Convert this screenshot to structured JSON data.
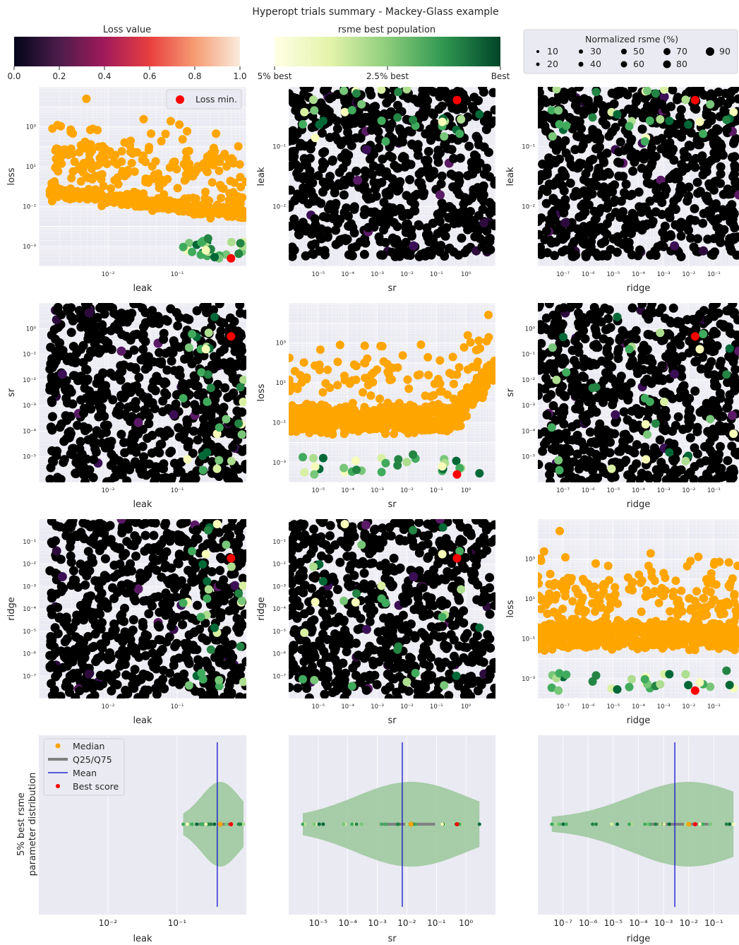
{
  "title": "Hyperopt trials summary - Mackey-Glass example",
  "colorbars": {
    "loss": {
      "label": "Loss value",
      "ticks": [
        "0.0",
        "0.2",
        "0.4",
        "0.6",
        "0.8",
        "1.0"
      ]
    },
    "rsme": {
      "label": "rsme best population",
      "ticks": [
        "5% best",
        "2.5% best",
        "Best"
      ]
    }
  },
  "size_legend": {
    "title": "Normalized rsme (%)",
    "entries": [
      "10",
      "30",
      "50",
      "70",
      "90",
      "20",
      "40",
      "60",
      "80"
    ]
  },
  "loss_legend": {
    "label": "Loss min."
  },
  "violin_legend": {
    "entries": [
      "Median",
      "Q25/Q75",
      "Mean",
      "Best score"
    ]
  },
  "violin_ylabel": [
    "5% best rsme",
    "parameter distribution"
  ],
  "labels": {
    "leak": "leak",
    "sr": "sr",
    "ridge": "ridge",
    "loss": "loss"
  },
  "colors": {
    "orange": "#ffa500",
    "red": "#ff0000",
    "black": "#000000",
    "violin": "#8fc18f",
    "mean": "#0000cc",
    "quantile": "#808080"
  },
  "chart_data": {
    "type": "scatter",
    "scales": "log",
    "params": {
      "leak": {
        "range": [
          0.001,
          1
        ],
        "ticks": [
          "10⁻²",
          "10⁻¹"
        ]
      },
      "sr": {
        "range": [
          1e-06,
          10
        ],
        "ticks": [
          "10⁻⁵",
          "10⁻⁴",
          "10⁻³",
          "10⁻²",
          "10⁻¹",
          "10⁰"
        ]
      },
      "ridge": {
        "range": [
          1e-08,
          1
        ],
        "ticks": [
          "10⁻⁷",
          "10⁻⁶",
          "10⁻⁵",
          "10⁻⁴",
          "10⁻³",
          "10⁻²",
          "10⁻¹"
        ]
      },
      "loss": {
        "range": [
          0.0001,
          100000
        ],
        "ticks": [
          "10⁻³",
          "10⁻¹",
          "10¹",
          "10³"
        ]
      }
    },
    "best_trial": {
      "leak": 0.6,
      "sr": 0.5,
      "ridge": 0.018,
      "loss": 0.00025
    },
    "violin": {
      "leak": {
        "median": 0.42,
        "q25": 0.2,
        "q75": 0.58,
        "mean": 0.38
      },
      "sr": {
        "median": 0.014,
        "q25": 0.0012,
        "q75": 0.09,
        "mean": 0.007
      },
      "ridge": {
        "median": 0.01,
        "q25": 0.00018,
        "q75": 0.06,
        "mean": 0.0028
      }
    }
  }
}
